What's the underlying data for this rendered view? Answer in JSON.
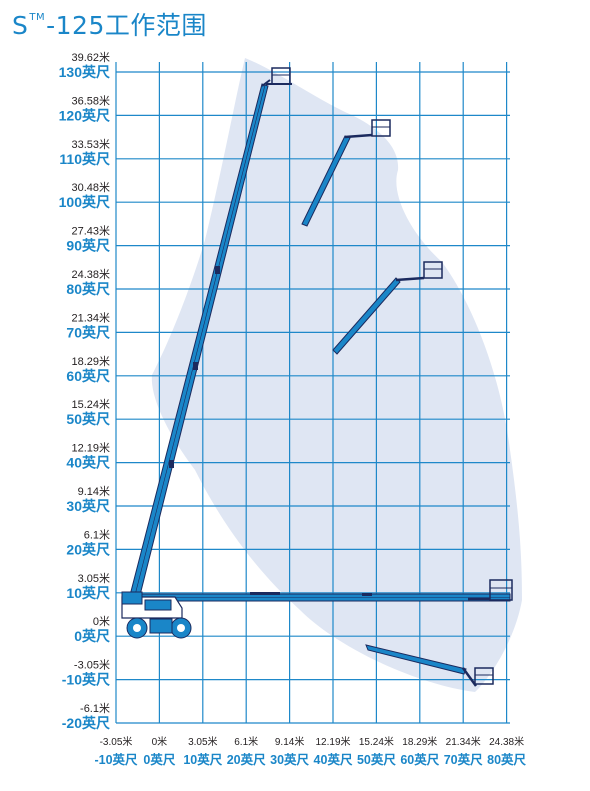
{
  "title": {
    "letter": "S",
    "tm": "TM",
    "model": "-125工作范围"
  },
  "colors": {
    "grid": "#1e88c9",
    "envelope": "#dfe6f3",
    "boom": "#1a86c8",
    "boom_edge": "#1b2a5e",
    "ft_label": "#1a86c8",
    "m_label": "#231f20"
  },
  "y_axis": [
    {
      "m": "39.62米",
      "ft": "130英尺"
    },
    {
      "m": "36.58米",
      "ft": "120英尺"
    },
    {
      "m": "33.53米",
      "ft": "110英尺"
    },
    {
      "m": "30.48米",
      "ft": "100英尺"
    },
    {
      "m": "27.43米",
      "ft": "90英尺"
    },
    {
      "m": "24.38米",
      "ft": "80英尺"
    },
    {
      "m": "21.34米",
      "ft": "70英尺"
    },
    {
      "m": "18.29米",
      "ft": "60英尺"
    },
    {
      "m": "15.24米",
      "ft": "50英尺"
    },
    {
      "m": "12.19米",
      "ft": "40英尺"
    },
    {
      "m": "9.14米",
      "ft": "30英尺"
    },
    {
      "m": "6.1米",
      "ft": "20英尺"
    },
    {
      "m": "3.05米",
      "ft": "10英尺"
    },
    {
      "m": "0米",
      "ft": "0英尺"
    },
    {
      "m": "-3.05米",
      "ft": "-10英尺"
    },
    {
      "m": "-6.1米",
      "ft": "-20英尺"
    }
  ],
  "x_axis": [
    {
      "m": "-3.05米",
      "ft": "-10英尺"
    },
    {
      "m": "0米",
      "ft": "0英尺"
    },
    {
      "m": "3.05米",
      "ft": "10英尺"
    },
    {
      "m": "6.1米",
      "ft": "20英尺"
    },
    {
      "m": "9.14米",
      "ft": "30英尺"
    },
    {
      "m": "12.19米",
      "ft": "40英尺"
    },
    {
      "m": "15.24米",
      "ft": "50英尺"
    },
    {
      "m": "18.29米",
      "ft": "60英尺"
    },
    {
      "m": "21.34米",
      "ft": "70英尺"
    },
    {
      "m": "24.38米",
      "ft": "80英尺"
    }
  ]
}
